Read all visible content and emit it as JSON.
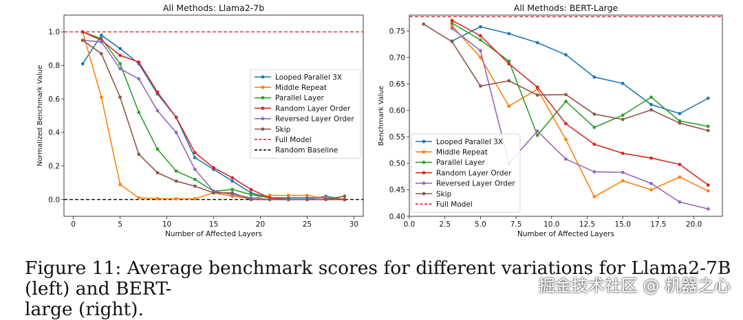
{
  "chart_data": [
    {
      "type": "line",
      "title": "All Methods: Llama2-7b",
      "xlabel": "Number of Affected Layers",
      "ylabel": "Normalized Benchmark Value",
      "xlim": [
        -1,
        31
      ],
      "ylim": [
        -0.1,
        1.1
      ],
      "xticks": [
        0,
        5,
        10,
        15,
        20,
        25,
        30
      ],
      "yticks": [
        0.0,
        0.2,
        0.4,
        0.6,
        0.8,
        1.0
      ],
      "series": [
        {
          "name": "Looped Parallel 3X",
          "color": "#1f77b4",
          "x": [
            1,
            3,
            5,
            7,
            9,
            11,
            13,
            15,
            17,
            19,
            21,
            23,
            25,
            27,
            29
          ],
          "y": [
            0.81,
            0.98,
            0.9,
            0.81,
            0.63,
            0.49,
            0.25,
            0.18,
            0.11,
            0.04,
            0.01,
            0.01,
            0.01,
            0.01,
            0.0
          ]
        },
        {
          "name": "Middle Repeat",
          "color": "#ff7f0e",
          "x": [
            1,
            3,
            5,
            7,
            9,
            11,
            13,
            15,
            17,
            19,
            21,
            23,
            25,
            27,
            29
          ],
          "y": [
            1.0,
            0.61,
            0.09,
            0.01,
            0.005,
            0.005,
            0.005,
            0.04,
            0.02,
            0.005,
            0.025,
            0.025,
            0.025,
            0.005,
            0.0
          ]
        },
        {
          "name": "Parallel Layer",
          "color": "#2ca02c",
          "x": [
            1,
            3,
            5,
            7,
            9,
            11,
            13,
            15,
            17,
            19,
            21,
            23,
            25,
            27,
            29
          ],
          "y": [
            1.0,
            0.96,
            0.81,
            0.52,
            0.3,
            0.17,
            0.12,
            0.05,
            0.06,
            0.03,
            0.01,
            0.0,
            0.0,
            0.02,
            0.0
          ]
        },
        {
          "name": "Random Layer Order",
          "color": "#d62728",
          "x": [
            1,
            3,
            5,
            7,
            9,
            11,
            13,
            15,
            17,
            19,
            21,
            23,
            25,
            27,
            29
          ],
          "y": [
            1.0,
            0.95,
            0.86,
            0.82,
            0.64,
            0.49,
            0.28,
            0.19,
            0.13,
            0.06,
            0.01,
            0.0,
            0.0,
            0.0,
            0.0
          ]
        },
        {
          "name": "Reversed Layer Order",
          "color": "#9467bd",
          "x": [
            1,
            3,
            5,
            7,
            9,
            11,
            13,
            15,
            17,
            19,
            21,
            23,
            25,
            27
          ],
          "y": [
            0.95,
            0.94,
            0.78,
            0.72,
            0.53,
            0.4,
            0.18,
            0.05,
            0.03,
            0.01,
            0.0,
            0.0,
            0.0,
            0.02
          ]
        },
        {
          "name": "Skip",
          "color": "#8c564b",
          "x": [
            1,
            3,
            5,
            7,
            9,
            11,
            13,
            15,
            17,
            19,
            21,
            23,
            25,
            27,
            29
          ],
          "y": [
            0.95,
            0.87,
            0.61,
            0.27,
            0.16,
            0.11,
            0.08,
            0.04,
            0.04,
            0.0,
            0.0,
            0.0,
            0.0,
            0.0,
            0.02
          ]
        }
      ],
      "reference_lines": [
        {
          "name": "Full Model",
          "y": 1.0,
          "color": "#d62728"
        },
        {
          "name": "Random Baseline",
          "y": 0.0,
          "color": "#000000"
        }
      ],
      "legend": "center-right"
    },
    {
      "type": "line",
      "title": "All Methods: BERT-Large",
      "xlabel": "Number of Affected Layers",
      "ylabel": "Benchmark Value",
      "xlim": [
        0,
        22
      ],
      "ylim": [
        0.4,
        0.78
      ],
      "xticks": [
        0.0,
        2.5,
        5.0,
        7.5,
        10.0,
        12.5,
        15.0,
        17.5,
        20.0
      ],
      "yticks": [
        0.4,
        0.45,
        0.5,
        0.55,
        0.6,
        0.65,
        0.7,
        0.75
      ],
      "series": [
        {
          "name": "Looped Parallel 3X",
          "color": "#1f77b4",
          "x": [
            3,
            5,
            7,
            9,
            11,
            13,
            15,
            17,
            19,
            21
          ],
          "y": [
            0.731,
            0.758,
            0.745,
            0.728,
            0.705,
            0.663,
            0.651,
            0.611,
            0.594,
            0.623
          ]
        },
        {
          "name": "Middle Repeat",
          "color": "#ff7f0e",
          "x": [
            3,
            5,
            7,
            9,
            11,
            13,
            15,
            17,
            19,
            21
          ],
          "y": [
            0.76,
            0.7,
            0.608,
            0.64,
            0.545,
            0.437,
            0.467,
            0.45,
            0.474,
            0.448
          ]
        },
        {
          "name": "Parallel Layer",
          "color": "#2ca02c",
          "x": [
            3,
            5,
            7,
            9,
            11,
            13,
            15,
            17,
            19,
            21
          ],
          "y": [
            0.765,
            0.733,
            0.693,
            0.553,
            0.617,
            0.568,
            0.591,
            0.625,
            0.58,
            0.57
          ]
        },
        {
          "name": "Random Layer Order",
          "color": "#d62728",
          "x": [
            3,
            5,
            7,
            9,
            11,
            13,
            15,
            17,
            19,
            21
          ],
          "y": [
            0.77,
            0.741,
            0.688,
            0.644,
            0.575,
            0.536,
            0.519,
            0.51,
            0.498,
            0.459
          ]
        },
        {
          "name": "Reversed Layer Order",
          "color": "#9467bd",
          "x": [
            3,
            5,
            7,
            9,
            11,
            13,
            15,
            17,
            19,
            21
          ],
          "y": [
            0.755,
            0.713,
            0.5,
            0.561,
            0.508,
            0.484,
            0.483,
            0.462,
            0.427,
            0.414
          ]
        },
        {
          "name": "Skip",
          "color": "#8c564b",
          "x": [
            1,
            3,
            5,
            7,
            9,
            11,
            13,
            15,
            17,
            19,
            21
          ],
          "y": [
            0.763,
            0.73,
            0.646,
            0.656,
            0.629,
            0.63,
            0.593,
            0.583,
            0.601,
            0.576,
            0.562
          ]
        }
      ],
      "reference_lines": [
        {
          "name": "Full Model",
          "y": 0.777,
          "color": "#d62728"
        }
      ],
      "legend": "lower-left"
    }
  ],
  "caption": {
    "line1": "Figure 11: Average benchmark scores for different variations for Llama2-7B (left) and BERT-",
    "line2": "large (right)."
  },
  "watermark": "掘金技术社区 @ 机器之心"
}
